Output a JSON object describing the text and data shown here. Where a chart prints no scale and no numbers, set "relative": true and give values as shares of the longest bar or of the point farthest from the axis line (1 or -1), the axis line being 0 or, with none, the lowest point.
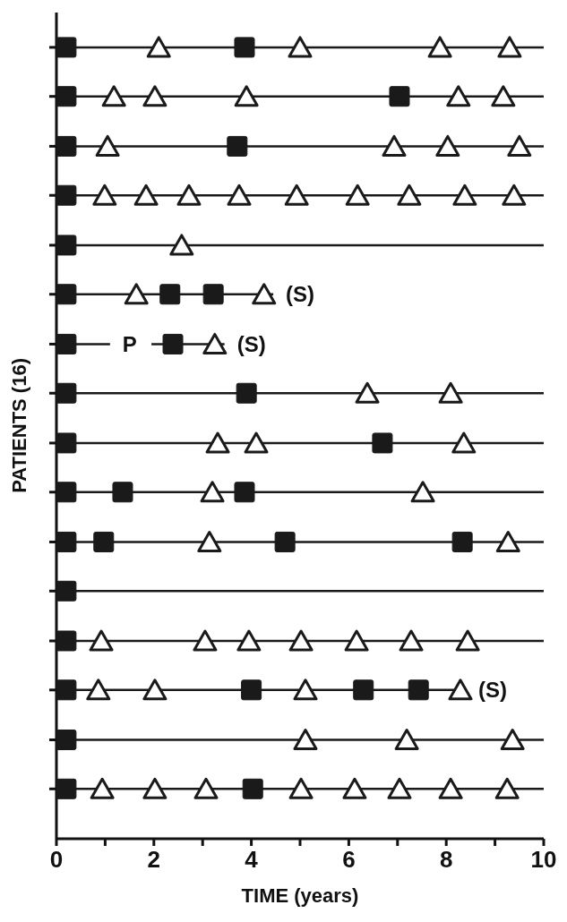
{
  "chart_data": {
    "type": "scatter",
    "xlabel": "TIME (years)",
    "ylabel": "PATIENTS (16)",
    "xlim": [
      0,
      10
    ],
    "xticks": [
      0,
      {
        "value": 1,
        "label": null
      },
      2,
      {
        "value": 3,
        "label": null
      },
      4,
      {
        "value": 5,
        "label": null
      },
      6,
      {
        "value": 7,
        "label": null
      },
      8,
      {
        "value": 9,
        "label": null
      },
      10
    ],
    "relative": true,
    "tick_labels": "x",
    "series": [
      {
        "type": "line",
        "color": "#1a1a1a",
        "x": [
          0,
          10
        ],
        "values": [
          1,
          1
        ]
      },
      {
        "type": "line",
        "color": "#1a1a1a",
        "x": [
          0,
          10
        ],
        "values": [
          0.938,
          0.938
        ]
      },
      {
        "type": "line",
        "color": "#1a1a1a",
        "x": [
          0,
          10
        ],
        "values": [
          0.875,
          0.875
        ]
      },
      {
        "type": "line",
        "color": "#1a1a1a",
        "x": [
          0,
          10
        ],
        "values": [
          0.813,
          0.813
        ]
      },
      {
        "type": "line",
        "color": "#1a1a1a",
        "x": [
          0,
          10
        ],
        "values": [
          0.75,
          0.75
        ]
      },
      {
        "type": "line",
        "color": "#1a1a1a",
        "x": [
          0,
          4.45
        ],
        "values": [
          0.688,
          0.688
        ]
      },
      {
        "type": "line",
        "color": "#1a1a1a",
        "x": [
          0,
          1.1
        ],
        "values": [
          0.625,
          0.625
        ]
      },
      {
        "type": "line",
        "color": "#1a1a1a",
        "x": [
          1.95,
          3.45
        ],
        "values": [
          0.625,
          0.625
        ]
      },
      {
        "type": "line",
        "color": "#1a1a1a",
        "x": [
          0,
          10
        ],
        "values": [
          0.563,
          0.563
        ]
      },
      {
        "type": "line",
        "color": "#1a1a1a",
        "x": [
          0,
          10
        ],
        "values": [
          0.5,
          0.5
        ]
      },
      {
        "type": "line",
        "color": "#1a1a1a",
        "x": [
          0,
          10
        ],
        "values": [
          0.438,
          0.438
        ]
      },
      {
        "type": "line",
        "color": "#1a1a1a",
        "x": [
          0,
          10
        ],
        "values": [
          0.375,
          0.375
        ]
      },
      {
        "type": "line",
        "color": "#1a1a1a",
        "x": [
          0,
          10
        ],
        "values": [
          0.313,
          0.313
        ]
      },
      {
        "type": "line",
        "color": "#1a1a1a",
        "x": [
          0,
          10
        ],
        "values": [
          0.25,
          0.25
        ]
      },
      {
        "type": "line",
        "color": "#1a1a1a",
        "x": [
          0,
          8.4
        ],
        "values": [
          0.188,
          0.188
        ]
      },
      {
        "type": "line",
        "color": "#1a1a1a",
        "x": [
          0,
          10
        ],
        "values": [
          0.125,
          0.125
        ]
      },
      {
        "type": "line",
        "color": "#1a1a1a",
        "x": [
          0,
          10
        ],
        "values": [
          0.063,
          0.063
        ]
      },
      {
        "color": "#1a1a1a",
        "marker": "square",
        "x": [
          0.2,
          3.86,
          0.2,
          7.04,
          0.2,
          3.71,
          0.2,
          0.2,
          0.2,
          2.33,
          3.22,
          0.2,
          2.39,
          0.2,
          3.9,
          0.2,
          6.69,
          0.2,
          1.36,
          3.86,
          0.2,
          0.97,
          4.69,
          8.33,
          0.2,
          0.2,
          0.2,
          4.0,
          6.3,
          7.43,
          0.2,
          0.2,
          4.03
        ],
        "values": [
          1,
          1,
          0.938,
          0.938,
          0.875,
          0.875,
          0.813,
          0.75,
          0.688,
          0.688,
          0.688,
          0.625,
          0.625,
          0.563,
          0.563,
          0.5,
          0.5,
          0.438,
          0.438,
          0.438,
          0.375,
          0.375,
          0.375,
          0.375,
          0.313,
          0.25,
          0.188,
          0.188,
          0.188,
          0.188,
          0.125,
          0.063,
          0.063
        ]
      },
      {
        "color": "#1a1a1a",
        "marker": "triangle",
        "x": [
          2.1,
          5.0,
          7.87,
          9.3,
          1.18,
          2.02,
          3.9,
          8.25,
          9.17,
          1.05,
          6.93,
          8.03,
          9.5,
          0.99,
          1.84,
          2.72,
          3.75,
          4.93,
          6.18,
          7.24,
          8.38,
          9.39,
          2.57,
          1.64,
          4.26,
          3.25,
          6.38,
          8.09,
          3.31,
          4.1,
          8.36,
          3.2,
          7.52,
          3.14,
          9.27,
          0.92,
          3.05,
          3.95,
          5.02,
          6.16,
          7.28,
          8.44,
          0.86,
          2.02,
          5.11,
          8.29,
          5.11,
          7.19,
          9.36,
          0.94,
          2.02,
          3.07,
          5.02,
          6.12,
          7.04,
          8.09,
          9.25
        ],
        "values": [
          1,
          1,
          1,
          1,
          0.938,
          0.938,
          0.938,
          0.938,
          0.938,
          0.875,
          0.875,
          0.875,
          0.875,
          0.813,
          0.813,
          0.813,
          0.813,
          0.813,
          0.813,
          0.813,
          0.813,
          0.813,
          0.75,
          0.688,
          0.688,
          0.625,
          0.563,
          0.563,
          0.5,
          0.5,
          0.5,
          0.438,
          0.438,
          0.375,
          0.375,
          0.25,
          0.25,
          0.25,
          0.25,
          0.25,
          0.25,
          0.25,
          0.188,
          0.188,
          0.188,
          0.188,
          0.125,
          0.125,
          0.125,
          0.063,
          0.063,
          0.063,
          0.063,
          0.063,
          0.063,
          0.063,
          0.063
        ]
      }
    ],
    "annotations": [
      {
        "text": "(S)",
        "x": 4.45,
        "y": 0.688
      },
      {
        "text": "P",
        "x": 1.1,
        "y": 0.625
      },
      {
        "text": "(S)",
        "x": 3.45,
        "y": 0.625
      },
      {
        "text": "(S)",
        "x": 8.4,
        "y": 0.188
      }
    ]
  }
}
